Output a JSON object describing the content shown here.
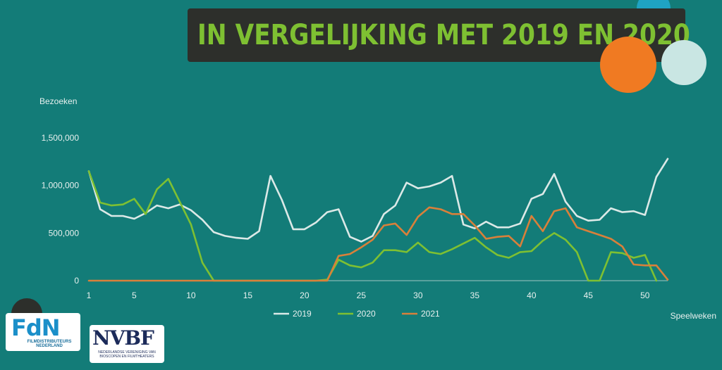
{
  "title": "IN VERGELIJKING MET 2019 EN 2020",
  "logos": {
    "fdn": {
      "word": "FdN",
      "subtitle": "FILMDISTRIBUTEURS NEDERLAND"
    },
    "nvbf": {
      "word": "NVBF",
      "subtitle": "NEDERLANDSE VERENIGING VAN BIOSCOPEN EN FILMTHEATERS"
    }
  },
  "colors": {
    "background": "#137c78",
    "title_bar": "#2d2f2b",
    "title_text": "#7ec032",
    "series_2019": "#dbe9e7",
    "series_2020": "#7ec032",
    "series_2021": "#d9803a"
  },
  "chart_data": {
    "type": "line",
    "ylabel": "Bezoeken",
    "xlabel": "Speelweken",
    "ylim": [
      0,
      1500000
    ],
    "xlim": [
      1,
      52
    ],
    "yticks": [
      {
        "value": 0,
        "label": "0"
      },
      {
        "value": 500000,
        "label": "500,000"
      },
      {
        "value": 1000000,
        "label": "1,000,000"
      },
      {
        "value": 1500000,
        "label": "1,500,000"
      }
    ],
    "xticks": [
      1,
      5,
      10,
      15,
      20,
      25,
      30,
      35,
      40,
      45,
      50
    ],
    "grid": false,
    "legend": "bottom",
    "x": [
      1,
      2,
      3,
      4,
      5,
      6,
      7,
      8,
      9,
      10,
      11,
      12,
      13,
      14,
      15,
      16,
      17,
      18,
      19,
      20,
      21,
      22,
      23,
      24,
      25,
      26,
      27,
      28,
      29,
      30,
      31,
      32,
      33,
      34,
      35,
      36,
      37,
      38,
      39,
      40,
      41,
      42,
      43,
      44,
      45,
      46,
      47,
      48,
      49,
      50,
      51,
      52
    ],
    "series": [
      {
        "name": "2019",
        "color": "#dbe9e7",
        "values": [
          1150000,
          750000,
          680000,
          680000,
          650000,
          710000,
          790000,
          760000,
          800000,
          740000,
          640000,
          510000,
          470000,
          450000,
          440000,
          520000,
          1100000,
          850000,
          540000,
          540000,
          610000,
          720000,
          750000,
          460000,
          410000,
          470000,
          700000,
          790000,
          1030000,
          970000,
          990000,
          1030000,
          1100000,
          590000,
          550000,
          620000,
          560000,
          560000,
          600000,
          860000,
          910000,
          1120000,
          830000,
          680000,
          630000,
          640000,
          760000,
          720000,
          730000,
          690000,
          1090000,
          1280000
        ]
      },
      {
        "name": "2020",
        "color": "#7ec032",
        "values": [
          1150000,
          820000,
          790000,
          800000,
          860000,
          700000,
          960000,
          1070000,
          830000,
          590000,
          190000,
          0,
          0,
          0,
          0,
          0,
          0,
          0,
          0,
          0,
          0,
          10000,
          220000,
          160000,
          140000,
          190000,
          320000,
          320000,
          300000,
          400000,
          300000,
          280000,
          330000,
          390000,
          450000,
          350000,
          270000,
          240000,
          300000,
          310000,
          420000,
          500000,
          430000,
          300000,
          0,
          0,
          300000,
          290000,
          240000,
          270000,
          0,
          null
        ]
      },
      {
        "name": "2021",
        "color": "#d9803a",
        "values": [
          0,
          0,
          0,
          0,
          0,
          0,
          0,
          0,
          0,
          0,
          0,
          0,
          0,
          0,
          0,
          0,
          0,
          0,
          0,
          0,
          0,
          0,
          260000,
          280000,
          350000,
          430000,
          580000,
          600000,
          480000,
          670000,
          770000,
          750000,
          700000,
          700000,
          580000,
          440000,
          460000,
          470000,
          360000,
          680000,
          520000,
          730000,
          760000,
          560000,
          520000,
          480000,
          440000,
          360000,
          170000,
          160000,
          160000,
          10000
        ]
      }
    ]
  }
}
